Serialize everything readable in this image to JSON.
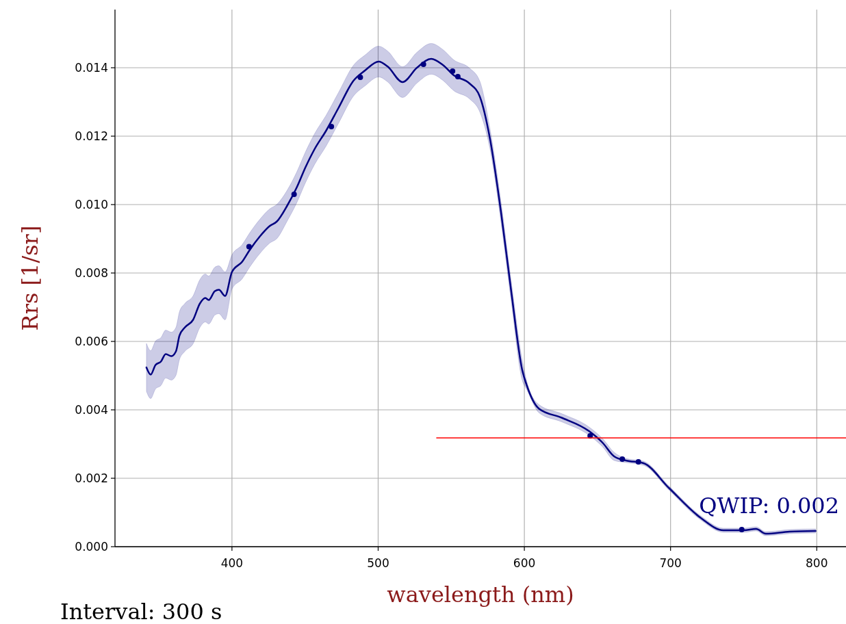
{
  "chart_data": {
    "type": "line",
    "xlabel": "wavelength (nm)",
    "ylabel": "Rrs [1/sr]",
    "xlim": [
      320,
      820
    ],
    "ylim": [
      0,
      0.0157
    ],
    "xticks": [
      400,
      500,
      600,
      700,
      800
    ],
    "yticks": [
      {
        "value": 0,
        "label": "0.000"
      },
      {
        "value": 0.002,
        "label": "0.002"
      },
      {
        "value": 0.004,
        "label": "0.004"
      },
      {
        "value": 0.006,
        "label": "0.006"
      },
      {
        "value": 0.008,
        "label": "0.008"
      },
      {
        "value": 0.01,
        "label": "0.010"
      },
      {
        "value": 0.012,
        "label": "0.012"
      },
      {
        "value": 0.014,
        "label": "0.014"
      }
    ],
    "grid": true,
    "annotations": [
      "QWIP: 0.002",
      "Interval: 300 s"
    ],
    "series": [
      {
        "color": "#000080",
        "marker": "none",
        "x": [
          341.5,
          344.4,
          347.7,
          351.4,
          354.7,
          358.5,
          361.7,
          364.1,
          367.8,
          373.4,
          378.1,
          381.8,
          384.1,
          388.3,
          391.1,
          395.3,
          400,
          407,
          412.1,
          419.1,
          425.7,
          430.8,
          437.8,
          444.3,
          450.4,
          456.5,
          464.4,
          472.8,
          483.1,
          491,
          500.4,
          506.4,
          516.7,
          526.5,
          536.3,
          544.3,
          551.7,
          562.5,
          569.5,
          576.5,
          584,
          591,
          598.5,
          601.7,
          610.1,
          625.5,
          644.2,
          653.5,
          661.4,
          669.4,
          681.5,
          698.8,
          720.7,
          736.1,
          750.1,
          758.5,
          765.1,
          781.4,
          799.2
        ],
        "values": [
          0.00524,
          0.00503,
          0.00531,
          0.00541,
          0.00563,
          0.00557,
          0.00571,
          0.00617,
          0.00641,
          0.00663,
          0.00711,
          0.00727,
          0.00721,
          0.00747,
          0.00751,
          0.00733,
          0.00803,
          0.00833,
          0.00867,
          0.00907,
          0.00937,
          0.00951,
          0.00997,
          0.0105,
          0.0111,
          0.01162,
          0.01216,
          0.01282,
          0.01362,
          0.01392,
          0.01418,
          0.01404,
          0.01358,
          0.014,
          0.01426,
          0.01408,
          0.01378,
          0.01354,
          0.01316,
          0.01192,
          0.00979,
          0.00747,
          0.00517,
          0.00471,
          0.00403,
          0.00377,
          0.00338,
          0.00304,
          0.00264,
          0.00252,
          0.00244,
          0.00172,
          0.00084,
          0.00048,
          0.00048,
          0.00052,
          0.00038,
          0.00044,
          0.00046
        ],
        "upper": [
          0.00594,
          0.00573,
          0.00601,
          0.00611,
          0.00633,
          0.00627,
          0.00641,
          0.00687,
          0.00711,
          0.00733,
          0.00781,
          0.00797,
          0.00791,
          0.00817,
          0.00821,
          0.00803,
          0.00853,
          0.00883,
          0.00917,
          0.00957,
          0.00987,
          0.01001,
          0.01042,
          0.01095,
          0.01155,
          0.01207,
          0.01261,
          0.01327,
          0.01407,
          0.01437,
          0.01463,
          0.01449,
          0.01403,
          0.01445,
          0.01471,
          0.01453,
          0.01423,
          0.01399,
          0.01361,
          0.01222,
          0.01009,
          0.00777,
          0.00547,
          0.00483,
          0.00415,
          0.00389,
          0.0035,
          0.00316,
          0.00276,
          0.00258,
          0.0025,
          0.00178,
          0.0009,
          0.00054,
          0.00054,
          0.00058,
          0.00044,
          0.0005,
          0.00052
        ],
        "lower": [
          0.00454,
          0.00433,
          0.00461,
          0.00471,
          0.00493,
          0.00487,
          0.00501,
          0.00547,
          0.00571,
          0.00593,
          0.00641,
          0.00657,
          0.00651,
          0.00677,
          0.00681,
          0.00663,
          0.00753,
          0.00783,
          0.00817,
          0.00857,
          0.00887,
          0.00901,
          0.00952,
          0.01005,
          0.01065,
          0.01117,
          0.01171,
          0.01237,
          0.01317,
          0.01347,
          0.01373,
          0.01359,
          0.01313,
          0.01355,
          0.01381,
          0.01363,
          0.01333,
          0.01309,
          0.01271,
          0.01162,
          0.00949,
          0.00717,
          0.00487,
          0.00459,
          0.00391,
          0.00365,
          0.00326,
          0.00292,
          0.00252,
          0.00246,
          0.00238,
          0.00166,
          0.00078,
          0.00042,
          0.00042,
          0.00046,
          0.00032,
          0.00038,
          0.0004
        ]
      },
      {
        "type": "scatter",
        "color": "#000080",
        "marker": "circle",
        "x": [
          411.7,
          442.5,
          468,
          487.8,
          531,
          550.9,
          554.5,
          645,
          667,
          678,
          748.7
        ],
        "values": [
          0.00877,
          0.0103,
          0.01228,
          0.01372,
          0.0141,
          0.0139,
          0.01374,
          0.00324,
          0.00256,
          0.00248,
          0.0005
        ]
      },
      {
        "color": "#ff0000",
        "marker": "none",
        "x": [
          540,
          820
        ],
        "values": [
          0.00318,
          0.00318
        ]
      }
    ]
  }
}
